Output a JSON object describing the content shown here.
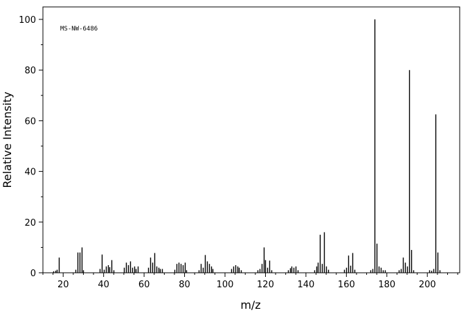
{
  "chart_data": {
    "type": "bar",
    "annotation": "MS-NW-6486",
    "xlabel": "m/z",
    "ylabel": "Relative Intensity",
    "xlim": [
      10,
      216
    ],
    "ylim": [
      0,
      105
    ],
    "x_ticks": [
      20,
      40,
      60,
      80,
      100,
      120,
      140,
      160,
      180,
      200
    ],
    "y_ticks": [
      0,
      20,
      40,
      60,
      80,
      100
    ],
    "x_tick_labels": [
      "20",
      "40",
      "60",
      "80",
      "100",
      "120",
      "140",
      "160",
      "180",
      "200"
    ],
    "y_tick_labels": [
      "0",
      "20",
      "40",
      "60",
      "80",
      "100"
    ],
    "grid": false,
    "colors": {
      "bars": "#000000",
      "axes": "#000000",
      "background": "#ffffff"
    },
    "peaks": [
      [
        15,
        0.6
      ],
      [
        16,
        0.8
      ],
      [
        17,
        1.2
      ],
      [
        18,
        6.0
      ],
      [
        26,
        1.2
      ],
      [
        27,
        8.0
      ],
      [
        28,
        8.0
      ],
      [
        29,
        10.0
      ],
      [
        30,
        1.0
      ],
      [
        38,
        1.5
      ],
      [
        39,
        7.2
      ],
      [
        40,
        1.2
      ],
      [
        41,
        2.5
      ],
      [
        42,
        3.0
      ],
      [
        43,
        2.2
      ],
      [
        44,
        5.0
      ],
      [
        45,
        1.0
      ],
      [
        50,
        2.0
      ],
      [
        51,
        4.0
      ],
      [
        52,
        3.0
      ],
      [
        53,
        4.5
      ],
      [
        54,
        2.0
      ],
      [
        55,
        2.5
      ],
      [
        56,
        1.5
      ],
      [
        57,
        2.5
      ],
      [
        62,
        2.0
      ],
      [
        63,
        6.0
      ],
      [
        64,
        4.0
      ],
      [
        65,
        7.8
      ],
      [
        66,
        2.5
      ],
      [
        67,
        2.0
      ],
      [
        68,
        1.5
      ],
      [
        69,
        1.5
      ],
      [
        75,
        1.2
      ],
      [
        76,
        3.5
      ],
      [
        77,
        4.0
      ],
      [
        78,
        3.5
      ],
      [
        79,
        3.0
      ],
      [
        80,
        4.0
      ],
      [
        81,
        1.0
      ],
      [
        87,
        1.0
      ],
      [
        88,
        3.5
      ],
      [
        89,
        2.0
      ],
      [
        90,
        7.0
      ],
      [
        91,
        4.5
      ],
      [
        92,
        3.5
      ],
      [
        93,
        2.5
      ],
      [
        94,
        1.5
      ],
      [
        103,
        1.5
      ],
      [
        104,
        2.5
      ],
      [
        105,
        3.0
      ],
      [
        106,
        2.5
      ],
      [
        107,
        2.0
      ],
      [
        108,
        1.0
      ],
      [
        116,
        1.0
      ],
      [
        117,
        1.5
      ],
      [
        118,
        3.5
      ],
      [
        119,
        10.0
      ],
      [
        120,
        5.0
      ],
      [
        121,
        2.0
      ],
      [
        122,
        4.8
      ],
      [
        123,
        1.0
      ],
      [
        131,
        1.0
      ],
      [
        132,
        1.8
      ],
      [
        133,
        2.5
      ],
      [
        134,
        2.0
      ],
      [
        135,
        2.5
      ],
      [
        136,
        1.0
      ],
      [
        144,
        1.0
      ],
      [
        145,
        2.5
      ],
      [
        146,
        4.0
      ],
      [
        147,
        15.0
      ],
      [
        148,
        3.5
      ],
      [
        149,
        16.0
      ],
      [
        150,
        2.5
      ],
      [
        151,
        1.2
      ],
      [
        159,
        1.2
      ],
      [
        160,
        2.0
      ],
      [
        161,
        6.8
      ],
      [
        162,
        2.8
      ],
      [
        163,
        7.8
      ],
      [
        164,
        1.2
      ],
      [
        172,
        1.0
      ],
      [
        173,
        1.5
      ],
      [
        174,
        100.0
      ],
      [
        175,
        11.5
      ],
      [
        176,
        2.5
      ],
      [
        177,
        2.0
      ],
      [
        178,
        1.0
      ],
      [
        179,
        1.0
      ],
      [
        186,
        1.0
      ],
      [
        187,
        1.5
      ],
      [
        188,
        6.0
      ],
      [
        189,
        4.0
      ],
      [
        190,
        2.5
      ],
      [
        191,
        80.0
      ],
      [
        192,
        9.0
      ],
      [
        193,
        1.0
      ],
      [
        201,
        1.0
      ],
      [
        202,
        0.8
      ],
      [
        203,
        1.5
      ],
      [
        204,
        62.5
      ],
      [
        205,
        8.0
      ],
      [
        206,
        1.0
      ]
    ]
  }
}
